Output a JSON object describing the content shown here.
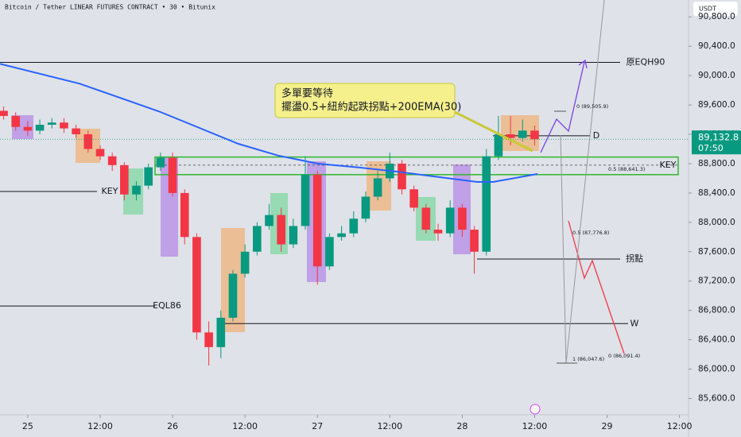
{
  "chart_data": {
    "type": "candlestick",
    "title": "Bitcoin / Tether LINEAR FUTURES CONTRACT • 30 • Bitunix",
    "currency": "USDT",
    "annotation": [
      "多單要等待",
      "擺盪0.5+紐約起跌拐點+200EMA(30)"
    ],
    "fib_labels": [
      "0 (89,505.9)",
      "0.5 (88,641.3)",
      "1 (86,047.6)",
      "0.5 (87,776.8)",
      "0 (86,091.4)"
    ],
    "last_price": {
      "value": 89132.8,
      "label": "89,132.8",
      "countdown": "07:50"
    },
    "xlim": [
      -4.6,
      109.5
    ],
    "xticks": [
      {
        "value": 0,
        "label": "25"
      },
      {
        "value": 12,
        "label": "12:00"
      },
      {
        "value": 24,
        "label": "26"
      },
      {
        "value": 36,
        "label": "12:00"
      },
      {
        "value": 48,
        "label": "27"
      },
      {
        "value": 60,
        "label": "12:00"
      },
      {
        "value": 72,
        "label": "28"
      },
      {
        "value": 84,
        "label": "12:00"
      },
      {
        "value": 96,
        "label": "29"
      },
      {
        "value": 108,
        "label": "12:00"
      }
    ],
    "ylim": [
      85378,
      91030
    ],
    "yticks": [
      {
        "value": 85600,
        "label": "85,600.0"
      },
      {
        "value": 86000,
        "label": "86,000.0"
      },
      {
        "value": 86400,
        "label": "86,400.0"
      },
      {
        "value": 86800,
        "label": "86,800.0"
      },
      {
        "value": 87200,
        "label": "87,200.0"
      },
      {
        "value": 87600,
        "label": "87,600.0"
      },
      {
        "value": 88000,
        "label": "88,000.0"
      },
      {
        "value": 88400,
        "label": "88,400.0"
      },
      {
        "value": 88800,
        "label": "88,800.0"
      },
      {
        "value": 89200,
        "label": "89,200.0"
      },
      {
        "value": 89600,
        "label": "89,600.0"
      },
      {
        "value": 90000,
        "label": "90,000.0"
      },
      {
        "value": 90400,
        "label": "90,400.0"
      },
      {
        "value": 90800,
        "label": "90,800.0"
      }
    ],
    "up_color": "#089981",
    "down_color": "#f23645",
    "candles": {
      "x": [
        -4,
        -2,
        0,
        2,
        4,
        6,
        8,
        10,
        12,
        14,
        16,
        18,
        20,
        22,
        24,
        26,
        28,
        30,
        32,
        34,
        36,
        38,
        40,
        42,
        44,
        46,
        48,
        50,
        52,
        54,
        56,
        58,
        60,
        62,
        64,
        66,
        68,
        70,
        72,
        74,
        76,
        78,
        80,
        82,
        84
      ],
      "open": [
        89520,
        89450,
        89300,
        89250,
        89330,
        89360,
        89280,
        89200,
        89000,
        88900,
        88780,
        88380,
        88500,
        88750,
        88880,
        88400,
        87800,
        86500,
        86300,
        86700,
        87300,
        87600,
        87950,
        88100,
        87700,
        87950,
        88650,
        87400,
        87800,
        87850,
        88050,
        88350,
        88600,
        88800,
        88450,
        88200,
        87900,
        87850,
        88200,
        87900,
        87600,
        88900,
        89200,
        89150,
        89250
      ],
      "high": [
        89580,
        89500,
        89380,
        89400,
        89420,
        89420,
        89330,
        89250,
        89050,
        88950,
        88820,
        88560,
        88800,
        88950,
        88950,
        88450,
        87850,
        86650,
        86800,
        87350,
        87700,
        88000,
        88250,
        88200,
        88050,
        88900,
        88700,
        87850,
        87950,
        88150,
        88420,
        88700,
        88950,
        88850,
        88500,
        88250,
        87980,
        88300,
        88250,
        87950,
        89000,
        89450,
        89450,
        89400,
        89320
      ],
      "low": [
        89400,
        89250,
        89180,
        89200,
        89280,
        89220,
        89150,
        88950,
        88850,
        88700,
        88300,
        88300,
        88450,
        88700,
        88350,
        87700,
        86400,
        86050,
        86150,
        86650,
        87250,
        87550,
        87900,
        87600,
        87650,
        87900,
        87150,
        87350,
        87750,
        87800,
        88000,
        88300,
        88550,
        88380,
        88150,
        87850,
        87750,
        87800,
        87800,
        87300,
        87550,
        88850,
        89050,
        89100,
        89050
      ],
      "close": [
        89450,
        89300,
        89250,
        89330,
        89360,
        89280,
        89200,
        89000,
        88900,
        88780,
        88380,
        88500,
        88750,
        88880,
        88400,
        87800,
        86500,
        86300,
        86700,
        87300,
        87600,
        87950,
        88100,
        87700,
        87950,
        88650,
        87400,
        87800,
        87850,
        88050,
        88350,
        88600,
        88800,
        88450,
        88200,
        87900,
        87850,
        88200,
        87900,
        87600,
        88900,
        89200,
        89150,
        89250,
        89132.8
      ]
    },
    "ema": {
      "color": "#2962ff",
      "x": [
        -4.6,
        8.6,
        21.8,
        34.9,
        41.5,
        48.1,
        54.7,
        61.3,
        67.9,
        74.5,
        77.1,
        84.5
      ],
      "values": [
        90160,
        89890,
        89510,
        89070,
        88910,
        88800,
        88750,
        88690,
        88620,
        88550,
        88550,
        88660
      ]
    },
    "levels": [
      {
        "label": "原EQH90",
        "value": 90180
      },
      {
        "label": "KEY",
        "value": 88420
      },
      {
        "label": "EQL86",
        "value": 86860
      },
      {
        "label": "D",
        "value": 89180
      },
      {
        "label": "拐點",
        "value": 87500
      },
      {
        "label": "W",
        "value": 86620
      }
    ],
    "key_zone": {
      "label": "KEY",
      "low": 88650,
      "high": 88890,
      "mid": 88780
    }
  }
}
